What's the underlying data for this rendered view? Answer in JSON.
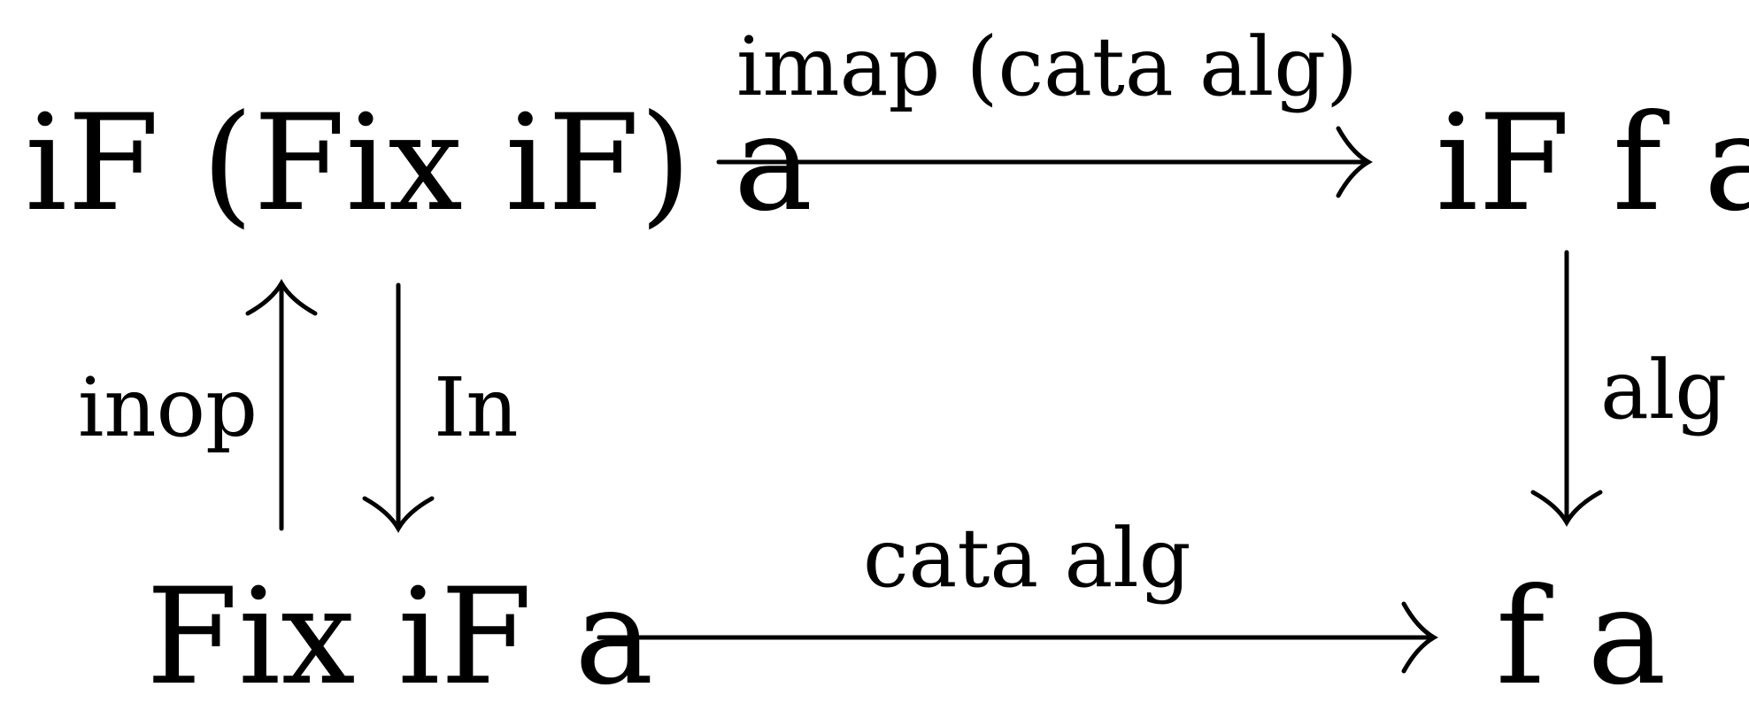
{
  "nodes": {
    "top_left": "iF (Fix iF) a",
    "top_right": "iF f a",
    "bottom_left": "Fix iF a",
    "bottom_right": "f a"
  },
  "arrows": {
    "top": "imap (cata alg)",
    "bottom": "cata alg",
    "right": "alg",
    "left_up": "inop",
    "left_down": "In"
  }
}
